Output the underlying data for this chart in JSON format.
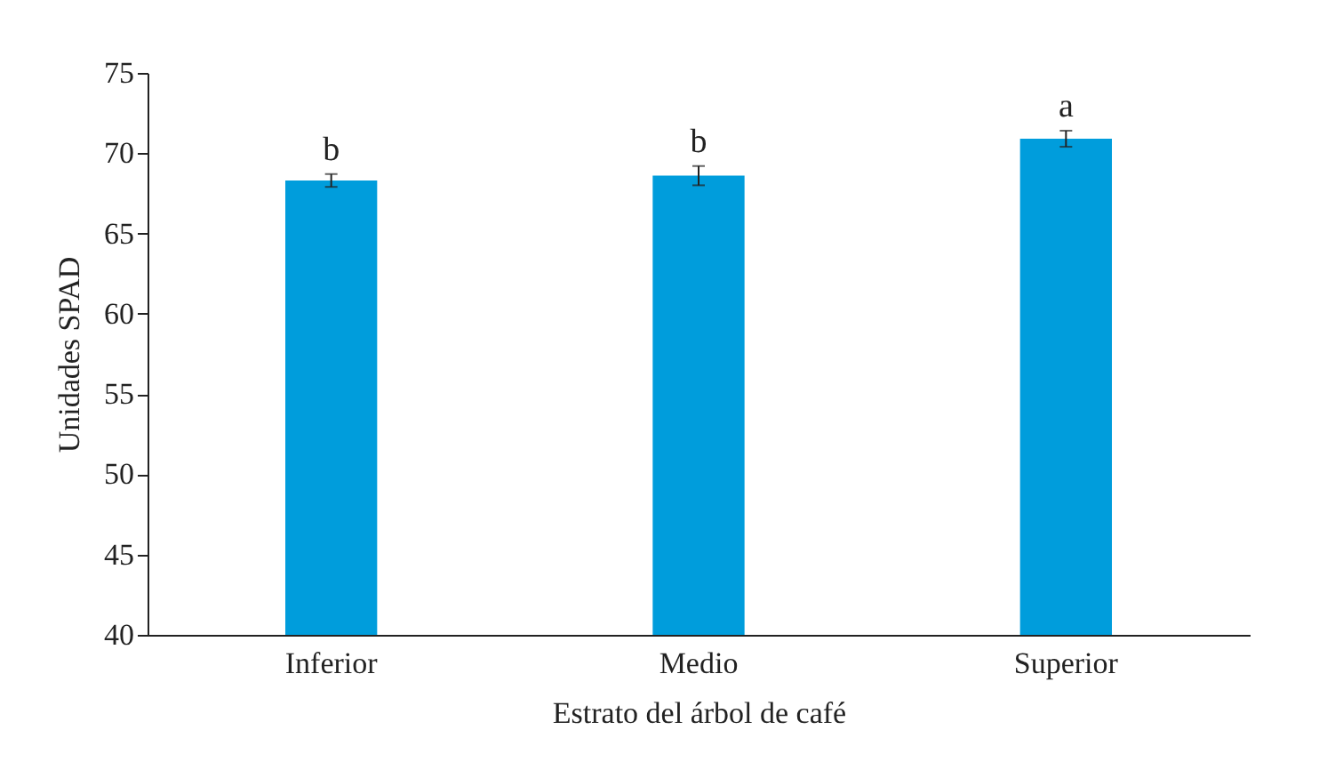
{
  "chart_data": {
    "type": "bar",
    "xlabel": "Estrato del árbol de café",
    "ylabel": "Unidades SPAD",
    "categories": [
      "Inferior",
      "Medio",
      "Superior"
    ],
    "values": [
      68.3,
      68.6,
      70.9
    ],
    "color": "#009ddc",
    "errors": [
      0.4,
      0.6,
      0.5
    ],
    "ylim": [
      40,
      75
    ],
    "yticks": [
      40,
      45,
      50,
      55,
      60,
      65,
      70,
      75
    ],
    "grid": false,
    "annotations": [
      {
        "text": "b",
        "x": "Inferior",
        "y": 68.7
      },
      {
        "text": "b",
        "x": "Medio",
        "y": 69.2
      },
      {
        "text": "a",
        "x": "Superior",
        "y": 71.4
      }
    ]
  }
}
